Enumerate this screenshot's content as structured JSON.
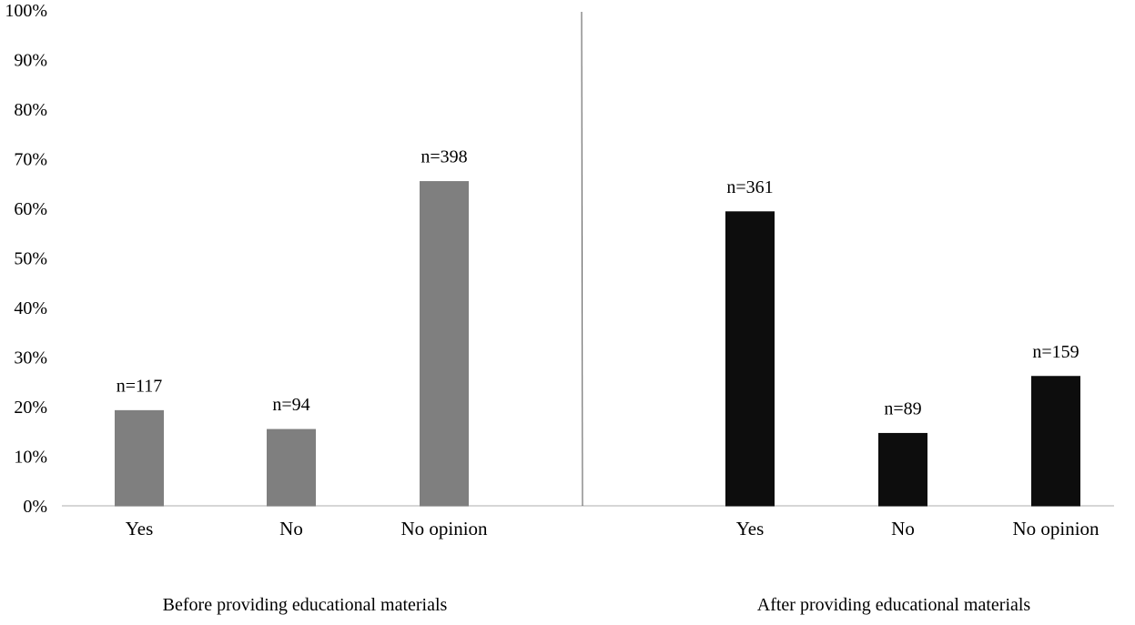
{
  "chart_data": {
    "type": "bar",
    "y_ticks": [
      "0%",
      "10%",
      "20%",
      "30%",
      "40%",
      "50%",
      "60%",
      "70%",
      "80%",
      "90%",
      "100%"
    ],
    "ylim": [
      0,
      100
    ],
    "grid": false,
    "groups": [
      {
        "label": "Before providing educational materials",
        "color": "#7f7f7f",
        "categories": [
          "Yes",
          "No",
          "No opinion"
        ],
        "values": [
          19.2,
          15.4,
          65.4
        ],
        "data_labels": [
          "n=117",
          "n=94",
          "n=398"
        ]
      },
      {
        "label": "After providing educational materials",
        "color": "#0d0d0d",
        "categories": [
          "Yes",
          "No",
          "No opinion"
        ],
        "values": [
          59.3,
          14.6,
          26.1
        ],
        "data_labels": [
          "n=361",
          "n=89",
          "n=159"
        ]
      }
    ]
  }
}
